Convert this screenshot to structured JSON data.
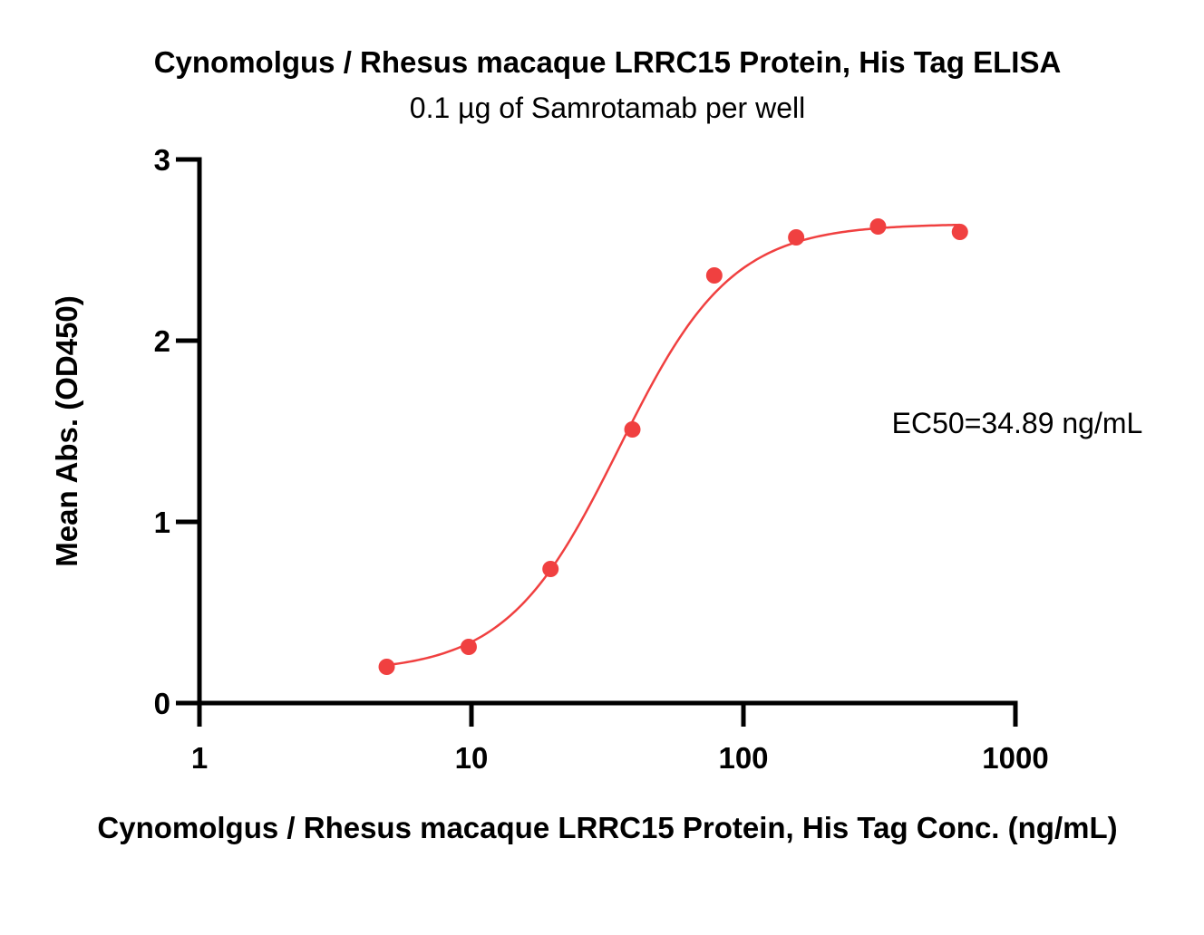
{
  "chart_data": {
    "type": "scatter",
    "title": "Cynomolgus / Rhesus macaque LRRC15 Protein, His Tag ELISA",
    "subtitle": "0.1 µg of Samrotamab per well",
    "xlabel": "Cynomolgus / Rhesus macaque LRRC15 Protein, His Tag Conc. (ng/mL)",
    "ylabel": "Mean Abs. (OD450)",
    "x_scale": "log",
    "xlim": [
      1,
      1000
    ],
    "ylim": [
      0,
      3
    ],
    "x_ticks": [
      1,
      10,
      100,
      1000
    ],
    "x_tick_labels": [
      "1",
      "10",
      "100",
      "1000"
    ],
    "y_ticks": [
      0,
      1,
      2,
      3
    ],
    "y_tick_labels": [
      "0",
      "1",
      "2",
      "3"
    ],
    "grid": false,
    "series": [
      {
        "x": [
          4.88,
          9.77,
          19.53,
          39.06,
          78.13,
          156.25,
          312.5,
          625
        ],
        "y": [
          0.2,
          0.31,
          0.74,
          1.51,
          2.36,
          2.57,
          2.63,
          2.6
        ],
        "color": "#f04040",
        "fit": "4PL sigmoidal",
        "fit_params": {
          "bottom": 0.17,
          "top": 2.645,
          "ec50": 34.89,
          "hill": 2.1
        }
      }
    ],
    "annotation": "EC50=34.89 ng/mL"
  }
}
